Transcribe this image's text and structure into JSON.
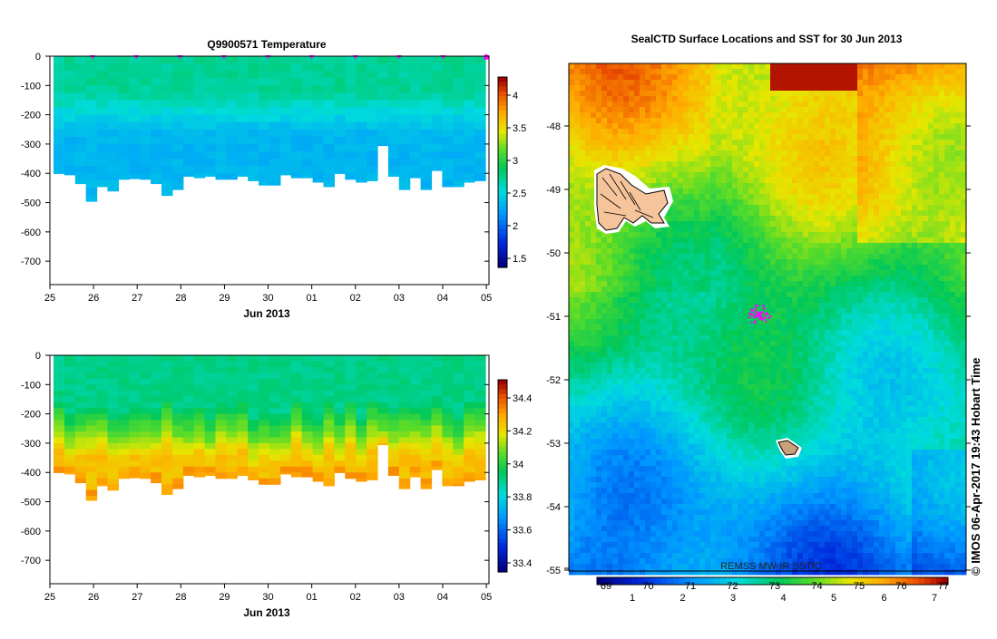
{
  "chart_data": [
    {
      "type": "heatmap",
      "title": "Q9900571  Temperature",
      "xlabel": "Jun 2013",
      "x_ticks": [
        "25",
        "26",
        "27",
        "28",
        "29",
        "30",
        "01",
        "02",
        "03",
        "04",
        "05"
      ],
      "y_ticks": [
        "0",
        "-100",
        "-200",
        "-300",
        "-400",
        "-500",
        "-600",
        "-700"
      ],
      "ylim": [
        -780,
        0
      ],
      "colorbar": {
        "ticks": [
          "4",
          "3.5",
          "3",
          "2.5",
          "2",
          "1.5"
        ],
        "range": [
          1.4,
          4.3
        ]
      },
      "profile_max_depth": [
        400,
        405,
        435,
        495,
        445,
        460,
        420,
        418,
        420,
        435,
        475,
        455,
        410,
        415,
        410,
        420,
        420,
        410,
        425,
        440,
        440,
        405,
        415,
        415,
        430,
        445,
        400,
        420,
        430,
        425,
        305,
        410,
        455,
        415,
        455,
        390,
        445,
        445,
        430,
        425
      ],
      "surface_value": 2.75,
      "deep_value": 2.35
    },
    {
      "type": "heatmap",
      "title": "",
      "xlabel": "Jun 2013",
      "x_ticks": [
        "25",
        "26",
        "27",
        "28",
        "29",
        "30",
        "01",
        "02",
        "03",
        "04",
        "05"
      ],
      "y_ticks": [
        "0",
        "-100",
        "-200",
        "-300",
        "-400",
        "-500",
        "-600",
        "-700"
      ],
      "ylim": [
        -780,
        0
      ],
      "colorbar": {
        "ticks": [
          "34.4",
          "34.2",
          "34",
          "33.8",
          "33.6",
          "33.4"
        ],
        "range": [
          33.3,
          34.45
        ]
      },
      "surface_value": 33.85,
      "deep_value": 34.2
    },
    {
      "type": "heatmap",
      "title": "SealCTD Surface Locations and SST for 30 Jun 2013",
      "y_ticks": [
        "-48",
        "-49",
        "-50",
        "-51",
        "-52",
        "-53",
        "-54",
        "-55"
      ],
      "lat_range": [
        -55,
        -47.2
      ],
      "colorbar": {
        "ticks_top": [
          "69",
          "70",
          "71",
          "72",
          "73",
          "74",
          "75",
          "76",
          "77"
        ],
        "ticks_bottom": [
          "1",
          "2",
          "3",
          "4",
          "5",
          "6",
          "7"
        ]
      },
      "source_label": "REMSS MW-IR SSTfC",
      "islands": [
        "Kerguelen",
        "Heard"
      ]
    }
  ],
  "credit": "© IMOS 06-Apr-2017 19:43 Hobart Time",
  "colors": {
    "magenta": "#ff00ff",
    "island": "#f6c49a"
  }
}
